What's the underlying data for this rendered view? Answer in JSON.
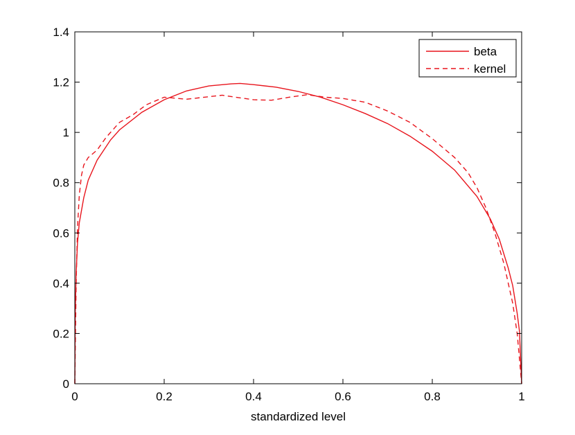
{
  "chart_data": {
    "type": "line",
    "title": "",
    "xlabel": "standardized level",
    "ylabel": "",
    "xlim": [
      0,
      1
    ],
    "ylim": [
      0,
      1.4
    ],
    "xticks": [
      0,
      0.2,
      0.4,
      0.6,
      0.8,
      1
    ],
    "xtick_labels": [
      "0",
      "0.2",
      "0.4",
      "0.6",
      "0.8",
      "1"
    ],
    "yticks": [
      0,
      0.2,
      0.4,
      0.6,
      0.8,
      1,
      1.2,
      1.4
    ],
    "ytick_labels": [
      "0",
      "0.2",
      "0.4",
      "0.6",
      "0.8",
      "1",
      "1.2",
      "1.4"
    ],
    "grid": false,
    "legend_position": "top-right",
    "series": [
      {
        "name": "beta",
        "color": "#e8141c",
        "style": "solid",
        "x": [
          0,
          0.001,
          0.003,
          0.006,
          0.01,
          0.02,
          0.03,
          0.05,
          0.08,
          0.1,
          0.15,
          0.2,
          0.25,
          0.3,
          0.35,
          0.37,
          0.4,
          0.45,
          0.5,
          0.55,
          0.6,
          0.65,
          0.7,
          0.75,
          0.8,
          0.85,
          0.9,
          0.93,
          0.95,
          0.97,
          0.98,
          0.99,
          0.995,
          1
        ],
        "y": [
          0,
          0.28,
          0.44,
          0.56,
          0.64,
          0.74,
          0.81,
          0.89,
          0.97,
          1.01,
          1.08,
          1.13,
          1.165,
          1.185,
          1.193,
          1.195,
          1.19,
          1.18,
          1.163,
          1.14,
          1.11,
          1.075,
          1.035,
          0.985,
          0.925,
          0.85,
          0.745,
          0.655,
          0.575,
          0.46,
          0.39,
          0.28,
          0.21,
          0
        ]
      },
      {
        "name": "kernel",
        "color": "#e8141c",
        "style": "dashed",
        "x": [
          0,
          0.003,
          0.006,
          0.01,
          0.015,
          0.02,
          0.03,
          0.04,
          0.05,
          0.07,
          0.1,
          0.13,
          0.16,
          0.2,
          0.25,
          0.3,
          0.33,
          0.36,
          0.4,
          0.44,
          0.48,
          0.52,
          0.56,
          0.6,
          0.65,
          0.7,
          0.75,
          0.8,
          0.85,
          0.88,
          0.9,
          0.92,
          0.94,
          0.96,
          0.98,
          0.99,
          1
        ],
        "y": [
          0,
          0.4,
          0.62,
          0.75,
          0.83,
          0.87,
          0.9,
          0.915,
          0.93,
          0.98,
          1.04,
          1.07,
          1.11,
          1.14,
          1.132,
          1.142,
          1.148,
          1.14,
          1.13,
          1.128,
          1.14,
          1.15,
          1.14,
          1.135,
          1.12,
          1.085,
          1.04,
          0.975,
          0.9,
          0.84,
          0.78,
          0.7,
          0.6,
          0.48,
          0.32,
          0.2,
          0
        ]
      }
    ]
  }
}
